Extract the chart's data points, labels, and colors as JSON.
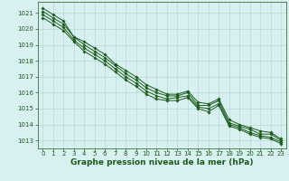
{
  "x": [
    0,
    1,
    2,
    3,
    4,
    5,
    6,
    7,
    8,
    9,
    10,
    11,
    12,
    13,
    14,
    15,
    16,
    17,
    18,
    19,
    20,
    21,
    22,
    23
  ],
  "series": [
    [
      1021.3,
      1020.9,
      1020.5,
      1019.5,
      1019.2,
      1018.8,
      1018.4,
      1017.8,
      1017.4,
      1017.0,
      1016.5,
      1016.2,
      1015.9,
      1015.9,
      1016.1,
      1015.4,
      1015.3,
      1015.6,
      1014.3,
      1014.0,
      1013.8,
      1013.6,
      1013.5,
      1013.1
    ],
    [
      1021.1,
      1020.7,
      1020.3,
      1019.5,
      1019.0,
      1018.6,
      1018.2,
      1017.7,
      1017.2,
      1016.8,
      1016.3,
      1016.0,
      1015.8,
      1015.8,
      1016.0,
      1015.2,
      1015.2,
      1015.5,
      1014.1,
      1013.9,
      1013.7,
      1013.4,
      1013.4,
      1013.0
    ],
    [
      1020.9,
      1020.5,
      1020.1,
      1019.3,
      1018.8,
      1018.4,
      1018.0,
      1017.5,
      1017.0,
      1016.6,
      1016.1,
      1015.8,
      1015.6,
      1015.7,
      1015.8,
      1015.1,
      1015.0,
      1015.3,
      1014.0,
      1013.8,
      1013.5,
      1013.3,
      1013.2,
      1012.9
    ],
    [
      1020.7,
      1020.3,
      1019.9,
      1019.2,
      1018.6,
      1018.2,
      1017.8,
      1017.3,
      1016.8,
      1016.4,
      1015.9,
      1015.6,
      1015.5,
      1015.5,
      1015.7,
      1015.0,
      1014.8,
      1015.2,
      1013.9,
      1013.7,
      1013.4,
      1013.2,
      1013.1,
      1012.8
    ]
  ],
  "line_color": "#1a5c1a",
  "marker": "D",
  "marker_size": 1.8,
  "bg_color": "#d8f0f0",
  "grid_color": "#b8d8d8",
  "axis_color": "#1a5c1a",
  "xlabel": "Graphe pression niveau de la mer (hPa)",
  "xlabel_fontsize": 6.5,
  "tick_fontsize": 5.0,
  "ylim": [
    1012.5,
    1021.7
  ],
  "yticks": [
    1013,
    1014,
    1015,
    1016,
    1017,
    1018,
    1019,
    1020,
    1021
  ],
  "xticks": [
    0,
    1,
    2,
    3,
    4,
    5,
    6,
    7,
    8,
    9,
    10,
    11,
    12,
    13,
    14,
    15,
    16,
    17,
    18,
    19,
    20,
    21,
    22,
    23
  ]
}
